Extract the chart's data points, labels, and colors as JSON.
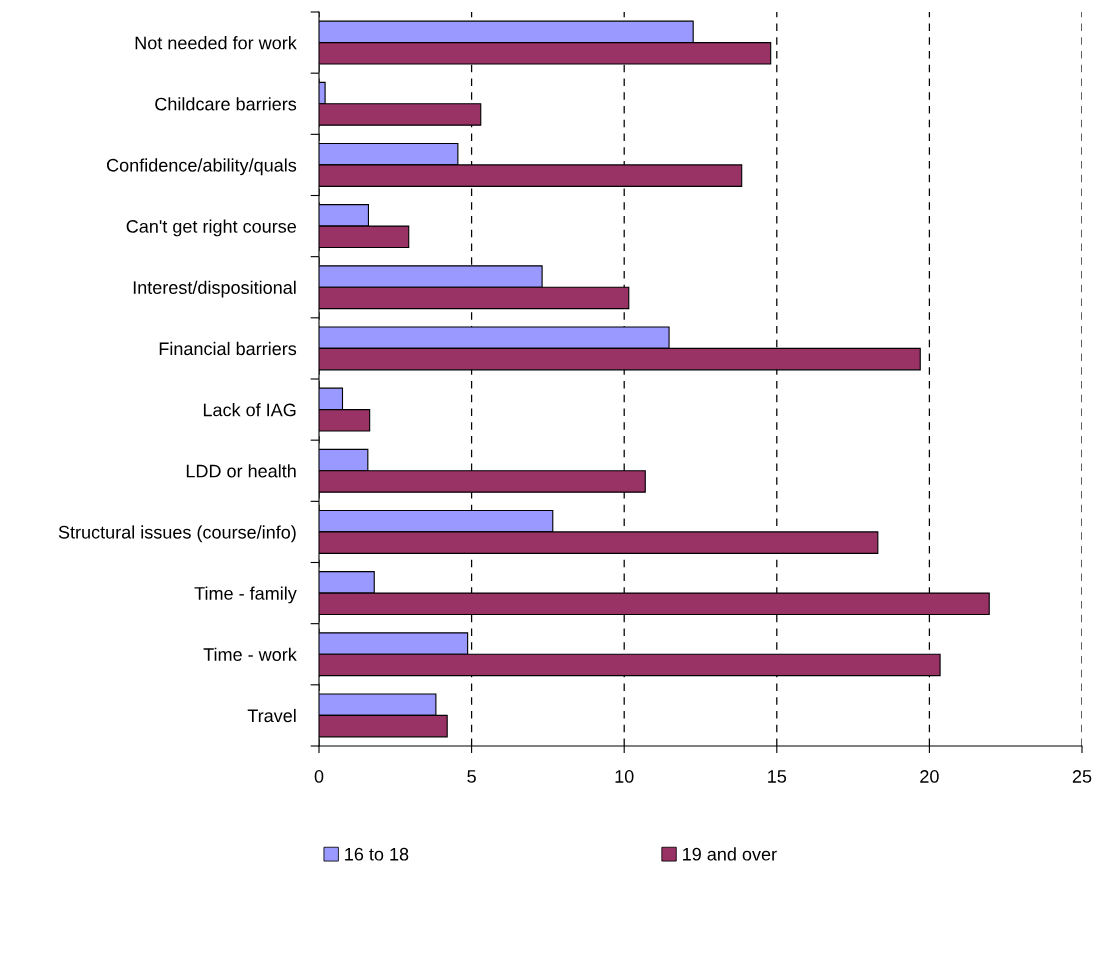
{
  "chart_data": {
    "type": "bar",
    "orientation": "horizontal",
    "categories": [
      "Not needed for work",
      "Childcare barriers",
      "Confidence/ability/quals",
      "Can't get right course",
      "Interest/dispositional",
      "Financial barriers",
      "Lack of IAG",
      "LDD or health",
      "Structural issues (course/info)",
      "Time - family",
      "Time - work",
      "Travel"
    ],
    "series": [
      {
        "name": "16 to 18",
        "color": "#9999ff",
        "values": [
          12.26,
          0.2,
          4.55,
          1.62,
          7.31,
          11.47,
          0.77,
          1.6,
          7.66,
          1.81,
          4.87,
          3.83
        ]
      },
      {
        "name": "19 and over",
        "color": "#993366",
        "values": [
          14.8,
          5.3,
          13.85,
          2.94,
          10.15,
          19.7,
          1.66,
          10.69,
          18.31,
          21.96,
          20.35,
          4.2
        ]
      }
    ],
    "xlim": [
      0,
      25
    ],
    "xticks": [
      0,
      5,
      10,
      15,
      20,
      25
    ],
    "grid": "x",
    "legend": "bottom"
  }
}
